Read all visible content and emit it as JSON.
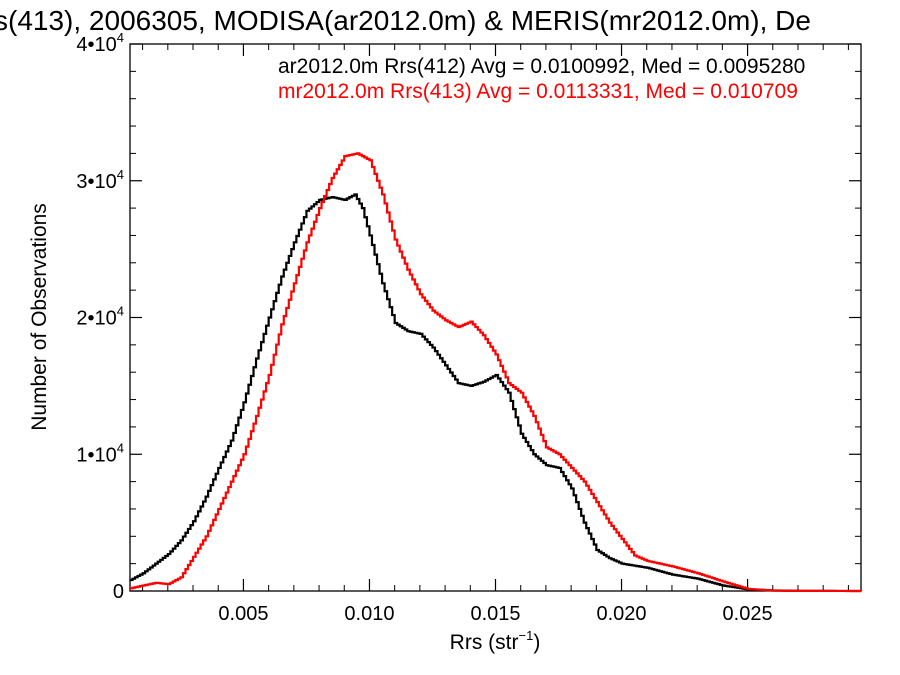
{
  "chart_data": {
    "type": "line",
    "title": "s(413), 2006305, MODISA(ar2012.0m) & MERIS(mr2012.0m), De",
    "xlabel": "Rrs (str",
    "xlabel_sup": "−1",
    "xlabel_close": ")",
    "ylabel": "Number of Observations",
    "xlim": [
      0.0005,
      0.0295
    ],
    "ylim": [
      0,
      40000
    ],
    "x_ticks": [
      {
        "value": 0.005,
        "label": "0.005"
      },
      {
        "value": 0.01,
        "label": "0.010"
      },
      {
        "value": 0.015,
        "label": "0.015"
      },
      {
        "value": 0.02,
        "label": "0.020"
      },
      {
        "value": 0.025,
        "label": "0.025"
      }
    ],
    "y_ticks": [
      {
        "value": 0,
        "base": "0",
        "exp": ""
      },
      {
        "value": 10000,
        "base": "1•10",
        "exp": "4"
      },
      {
        "value": 20000,
        "base": "2•10",
        "exp": "4"
      },
      {
        "value": 30000,
        "base": "3•10",
        "exp": "4"
      },
      {
        "value": 40000,
        "base": "4•10",
        "exp": "4"
      }
    ],
    "grid": false,
    "legend_position": "top-right",
    "series": [
      {
        "name": "ar2012.0m Rrs(412) Avg = 0.0100992, Med = 0.0095280",
        "color": "#000000",
        "points": [
          [
            0.0005,
            800
          ],
          [
            0.001,
            1300
          ],
          [
            0.0015,
            2000
          ],
          [
            0.002,
            2700
          ],
          [
            0.0025,
            3700
          ],
          [
            0.003,
            5100
          ],
          [
            0.0035,
            6900
          ],
          [
            0.004,
            9000
          ],
          [
            0.0045,
            11000
          ],
          [
            0.005,
            13800
          ],
          [
            0.0055,
            17000
          ],
          [
            0.006,
            20000
          ],
          [
            0.0065,
            23000
          ],
          [
            0.007,
            25500
          ],
          [
            0.0075,
            27800
          ],
          [
            0.008,
            28600
          ],
          [
            0.0085,
            28800
          ],
          [
            0.009,
            28600
          ],
          [
            0.0094,
            29000
          ],
          [
            0.0097,
            28000
          ],
          [
            0.01,
            26000
          ],
          [
            0.0105,
            22500
          ],
          [
            0.011,
            19600
          ],
          [
            0.0115,
            19000
          ],
          [
            0.012,
            18800
          ],
          [
            0.0125,
            17800
          ],
          [
            0.013,
            16500
          ],
          [
            0.0135,
            15200
          ],
          [
            0.014,
            15000
          ],
          [
            0.0145,
            15300
          ],
          [
            0.015,
            15800
          ],
          [
            0.0155,
            14500
          ],
          [
            0.016,
            11500
          ],
          [
            0.0165,
            10000
          ],
          [
            0.017,
            9200
          ],
          [
            0.0175,
            9000
          ],
          [
            0.018,
            7500
          ],
          [
            0.0185,
            5000
          ],
          [
            0.019,
            3000
          ],
          [
            0.0195,
            2400
          ],
          [
            0.02,
            2000
          ],
          [
            0.021,
            1700
          ],
          [
            0.022,
            1200
          ],
          [
            0.023,
            900
          ],
          [
            0.024,
            400
          ],
          [
            0.025,
            120
          ],
          [
            0.026,
            40
          ],
          [
            0.027,
            15
          ],
          [
            0.0295,
            0
          ]
        ]
      },
      {
        "name": "mr2012.0m Rrs(413) Avg = 0.0113331, Med = 0.010709",
        "color": "#ff0000",
        "points": [
          [
            0.0005,
            200
          ],
          [
            0.001,
            400
          ],
          [
            0.0015,
            600
          ],
          [
            0.002,
            500
          ],
          [
            0.0025,
            1000
          ],
          [
            0.003,
            2500
          ],
          [
            0.0035,
            4000
          ],
          [
            0.004,
            6000
          ],
          [
            0.0045,
            8000
          ],
          [
            0.005,
            10000
          ],
          [
            0.0055,
            12800
          ],
          [
            0.006,
            15800
          ],
          [
            0.0065,
            19500
          ],
          [
            0.007,
            22500
          ],
          [
            0.0075,
            25500
          ],
          [
            0.008,
            28000
          ],
          [
            0.0085,
            30200
          ],
          [
            0.009,
            31800
          ],
          [
            0.0095,
            32000
          ],
          [
            0.01,
            31500
          ],
          [
            0.0105,
            29000
          ],
          [
            0.011,
            25700
          ],
          [
            0.0115,
            23500
          ],
          [
            0.012,
            21700
          ],
          [
            0.0125,
            20500
          ],
          [
            0.013,
            19800
          ],
          [
            0.0135,
            19300
          ],
          [
            0.014,
            19700
          ],
          [
            0.0145,
            18700
          ],
          [
            0.015,
            17300
          ],
          [
            0.0155,
            15200
          ],
          [
            0.016,
            14500
          ],
          [
            0.0165,
            12800
          ],
          [
            0.017,
            10500
          ],
          [
            0.0175,
            10000
          ],
          [
            0.018,
            9000
          ],
          [
            0.0185,
            8000
          ],
          [
            0.019,
            6500
          ],
          [
            0.0195,
            5000
          ],
          [
            0.02,
            3800
          ],
          [
            0.0205,
            2600
          ],
          [
            0.021,
            2200
          ],
          [
            0.022,
            1800
          ],
          [
            0.023,
            1300
          ],
          [
            0.024,
            700
          ],
          [
            0.025,
            150
          ],
          [
            0.026,
            30
          ],
          [
            0.027,
            10
          ],
          [
            0.0295,
            0
          ]
        ]
      }
    ]
  }
}
